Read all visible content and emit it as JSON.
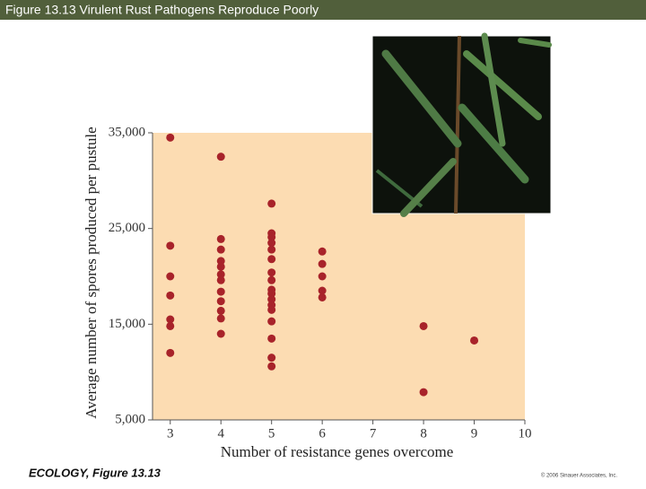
{
  "slide_title": "Figure 13.13  Virulent Rust Pathogens Reproduce Poorly",
  "footer_left": "ECOLOGY, Figure 13.13",
  "footer_right": "© 2006 Sinauer Associates, Inc.",
  "chart_data": {
    "type": "scatter",
    "xlabel": "Number of resistance genes overcome",
    "ylabel": "Average number of spores produced per pustule",
    "color": "#a8232a",
    "background": "#fcdcb2",
    "xlim": [
      2.65,
      10
    ],
    "ylim": [
      5000,
      35000
    ],
    "xticks": [
      3,
      4,
      5,
      6,
      7,
      8,
      9,
      10
    ],
    "yticks": [
      {
        "value": 5000,
        "label": "5,000"
      },
      {
        "value": 15000,
        "label": "15,000"
      },
      {
        "value": 25000,
        "label": "25,000"
      },
      {
        "value": 35000,
        "label": "35,000"
      }
    ],
    "x": [
      3,
      3,
      3,
      3,
      3,
      3,
      3,
      4,
      4,
      4,
      4,
      4,
      4,
      4,
      4,
      4,
      4,
      4,
      4,
      5,
      5,
      5,
      5,
      5,
      5,
      5,
      5,
      5,
      5,
      5,
      5,
      5,
      5,
      5,
      5,
      5,
      6,
      6,
      6,
      6,
      6,
      8,
      8,
      9
    ],
    "y": [
      34500,
      23200,
      20000,
      18000,
      15500,
      14800,
      12000,
      32500,
      23900,
      22800,
      21600,
      21000,
      20200,
      19600,
      18400,
      17400,
      16400,
      15600,
      14000,
      27600,
      24500,
      24100,
      23500,
      22800,
      21800,
      20400,
      19600,
      18600,
      18200,
      17600,
      17000,
      16500,
      15300,
      13500,
      11500,
      10600,
      22600,
      21300,
      20000,
      18500,
      17800,
      14800,
      7900,
      13300
    ]
  }
}
